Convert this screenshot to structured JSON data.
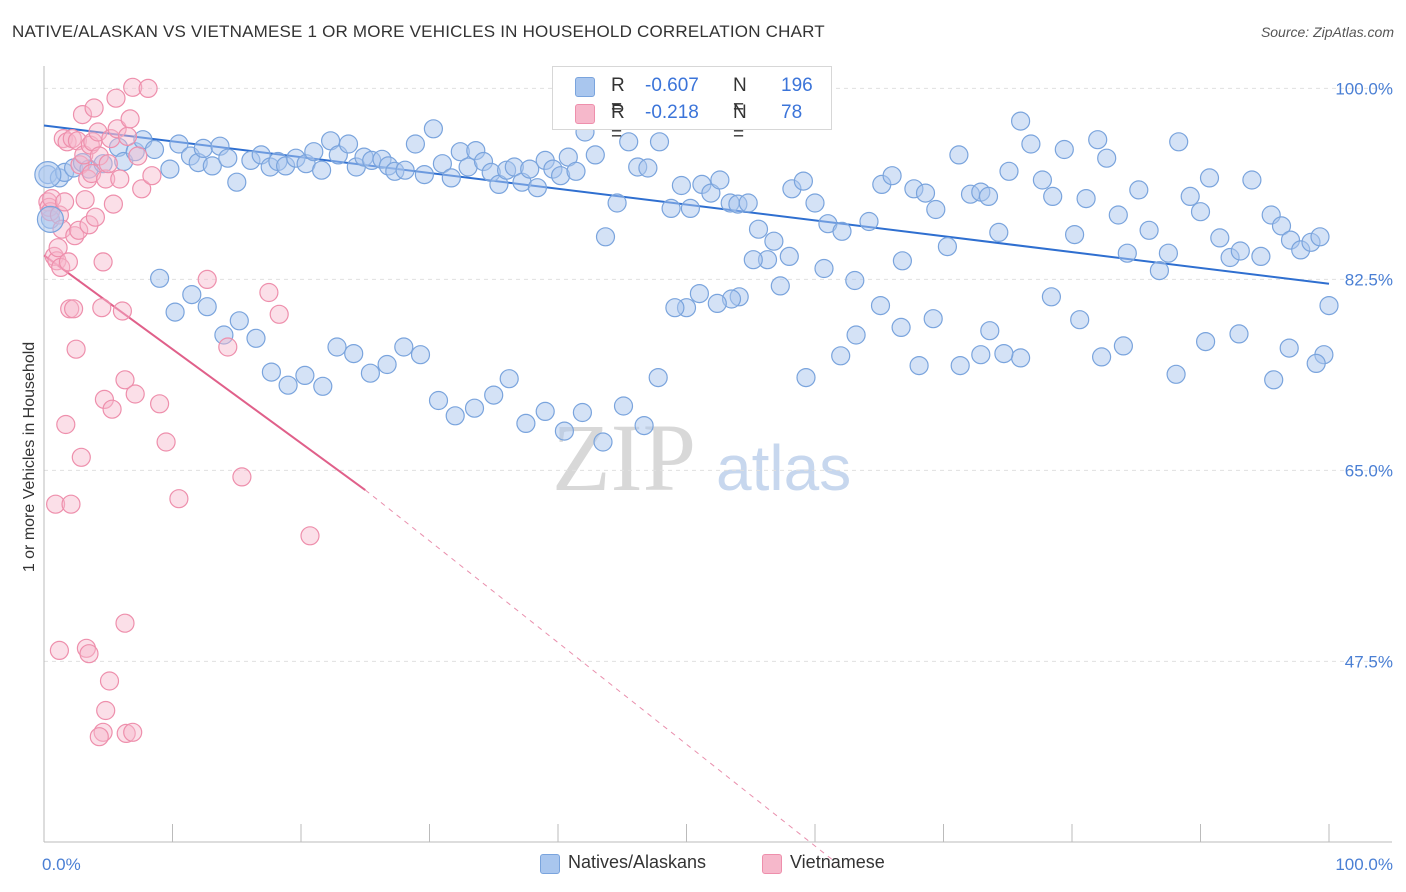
{
  "title": "NATIVE/ALASKAN VS VIETNAMESE 1 OR MORE VEHICLES IN HOUSEHOLD CORRELATION CHART",
  "source": "Source: ZipAtlas.com",
  "watermark": {
    "zip": "ZIP",
    "atlas": "atlas"
  },
  "legend": {
    "rows": [
      {
        "r_label": "R =",
        "r_value": "-0.607",
        "n_label": "N =",
        "n_value": "196"
      },
      {
        "r_label": "R =",
        "r_value": "-0.218",
        "n_label": "N =",
        "n_value": "78"
      }
    ]
  },
  "colors": {
    "native_fill": "#a9c6ee",
    "native_stroke": "#7aa4dd",
    "native_line": "#2f6fd0",
    "viet_fill": "#f6b8cb",
    "viet_stroke": "#ee8fac",
    "viet_line": "#e0608a",
    "axis_text": "#4a7fd4",
    "grid": "#e0e0e0"
  },
  "chart_data": {
    "type": "scatter",
    "title": "NATIVE/ALASKAN VS VIETNAMESE 1 OR MORE VEHICLES IN HOUSEHOLD CORRELATION CHART",
    "xlabel": "",
    "ylabel": "1 or more Vehicles in Household",
    "xlim": [
      0,
      100
    ],
    "ylim": [
      29,
      101.5
    ],
    "x_tick_labels": [
      "0.0%",
      "100.0%"
    ],
    "y_ticks": [
      47.5,
      65.0,
      82.5,
      100.0
    ],
    "y_tick_labels": [
      "47.5%",
      "65.0%",
      "82.5%",
      "100.0%"
    ],
    "grid": "horizontal dashed",
    "legend_placement": "bottom-center",
    "series": [
      {
        "name": "Natives/Alaskans",
        "n": 196,
        "r": -0.607,
        "trend": {
          "x": [
            0,
            100
          ],
          "y": [
            96.6,
            82.1
          ]
        },
        "points": [
          [
            0.3,
            92.1
          ],
          [
            0.5,
            88.0
          ],
          [
            1.2,
            91.8
          ],
          [
            1.6,
            92.3
          ],
          [
            2.3,
            92.7
          ],
          [
            3.0,
            93.2
          ],
          [
            3.5,
            92.6
          ],
          [
            4.6,
            93.1
          ],
          [
            5.8,
            94.6
          ],
          [
            6.2,
            93.3
          ],
          [
            7.1,
            94.2
          ],
          [
            7.7,
            95.3
          ],
          [
            8.6,
            94.4
          ],
          [
            9.8,
            92.6
          ],
          [
            10.5,
            94.9
          ],
          [
            11.4,
            93.8
          ],
          [
            12.0,
            93.2
          ],
          [
            12.4,
            94.5
          ],
          [
            13.1,
            92.9
          ],
          [
            13.7,
            94.7
          ],
          [
            14.3,
            93.6
          ],
          [
            15.0,
            91.4
          ],
          [
            16.1,
            93.4
          ],
          [
            16.9,
            93.9
          ],
          [
            17.6,
            92.8
          ],
          [
            18.2,
            93.3
          ],
          [
            18.8,
            92.9
          ],
          [
            19.6,
            93.6
          ],
          [
            20.4,
            93.1
          ],
          [
            21.0,
            94.2
          ],
          [
            21.6,
            92.5
          ],
          [
            22.3,
            95.2
          ],
          [
            22.9,
            93.9
          ],
          [
            23.7,
            94.9
          ],
          [
            24.3,
            92.8
          ],
          [
            24.9,
            93.7
          ],
          [
            25.5,
            93.4
          ],
          [
            26.3,
            93.5
          ],
          [
            26.8,
            92.9
          ],
          [
            27.3,
            92.4
          ],
          [
            28.1,
            92.5
          ],
          [
            28.9,
            94.9
          ],
          [
            29.6,
            92.1
          ],
          [
            30.3,
            96.3
          ],
          [
            31.0,
            93.1
          ],
          [
            31.7,
            91.8
          ],
          [
            32.4,
            94.2
          ],
          [
            33.0,
            92.8
          ],
          [
            33.6,
            94.3
          ],
          [
            34.2,
            93.3
          ],
          [
            34.8,
            92.3
          ],
          [
            35.4,
            91.2
          ],
          [
            36.0,
            92.5
          ],
          [
            36.6,
            92.8
          ],
          [
            37.2,
            91.4
          ],
          [
            37.8,
            92.6
          ],
          [
            38.4,
            90.9
          ],
          [
            39.0,
            93.4
          ],
          [
            39.6,
            92.6
          ],
          [
            40.2,
            92.0
          ],
          [
            40.8,
            93.7
          ],
          [
            41.4,
            92.4
          ],
          [
            42.1,
            96.0
          ],
          [
            42.9,
            93.9
          ],
          [
            43.7,
            86.4
          ],
          [
            44.6,
            89.5
          ],
          [
            45.5,
            95.1
          ],
          [
            46.2,
            92.8
          ],
          [
            47.0,
            92.7
          ],
          [
            47.9,
            95.1
          ],
          [
            48.8,
            89.0
          ],
          [
            49.6,
            91.1
          ],
          [
            50.3,
            89.0
          ],
          [
            51.2,
            91.2
          ],
          [
            51.9,
            90.4
          ],
          [
            52.6,
            91.6
          ],
          [
            53.4,
            89.5
          ],
          [
            54.0,
            89.4
          ],
          [
            54.8,
            89.5
          ],
          [
            55.6,
            87.1
          ],
          [
            56.3,
            84.3
          ],
          [
            57.3,
            81.9
          ],
          [
            58.2,
            90.8
          ],
          [
            59.1,
            91.5
          ],
          [
            60.0,
            89.5
          ],
          [
            61.0,
            87.6
          ],
          [
            62.1,
            86.9
          ],
          [
            63.1,
            82.4
          ],
          [
            64.2,
            87.8
          ],
          [
            65.2,
            91.2
          ],
          [
            66.0,
            92.0
          ],
          [
            66.8,
            84.2
          ],
          [
            67.7,
            90.8
          ],
          [
            68.6,
            90.4
          ],
          [
            69.4,
            88.9
          ],
          [
            70.3,
            85.5
          ],
          [
            71.2,
            93.9
          ],
          [
            72.1,
            90.3
          ],
          [
            72.9,
            90.5
          ],
          [
            73.5,
            90.1
          ],
          [
            74.3,
            86.8
          ],
          [
            75.1,
            92.4
          ],
          [
            76.0,
            97.0
          ],
          [
            76.8,
            94.9
          ],
          [
            77.7,
            91.6
          ],
          [
            78.5,
            90.1
          ],
          [
            79.4,
            94.4
          ],
          [
            80.2,
            86.6
          ],
          [
            81.1,
            89.9
          ],
          [
            82.0,
            95.3
          ],
          [
            82.7,
            93.6
          ],
          [
            83.6,
            88.4
          ],
          [
            84.3,
            84.9
          ],
          [
            85.2,
            90.7
          ],
          [
            86.0,
            87.0
          ],
          [
            86.8,
            83.3
          ],
          [
            87.5,
            84.9
          ],
          [
            88.3,
            95.1
          ],
          [
            89.2,
            90.1
          ],
          [
            90.0,
            88.7
          ],
          [
            90.7,
            91.8
          ],
          [
            91.5,
            86.3
          ],
          [
            92.3,
            84.5
          ],
          [
            93.1,
            85.1
          ],
          [
            94.0,
            91.6
          ],
          [
            94.7,
            84.6
          ],
          [
            95.5,
            88.4
          ],
          [
            96.3,
            87.4
          ],
          [
            97.0,
            86.1
          ],
          [
            97.8,
            85.2
          ],
          [
            98.6,
            85.9
          ],
          [
            99.3,
            86.4
          ],
          [
            100.0,
            80.1
          ],
          [
            99.6,
            75.6
          ],
          [
            99.0,
            74.8
          ],
          [
            96.9,
            76.2
          ],
          [
            95.7,
            73.3
          ],
          [
            93.0,
            77.5
          ],
          [
            90.4,
            76.8
          ],
          [
            88.1,
            73.8
          ],
          [
            84.0,
            76.4
          ],
          [
            82.3,
            75.4
          ],
          [
            80.6,
            78.8
          ],
          [
            78.4,
            80.9
          ],
          [
            76.0,
            75.3
          ],
          [
            74.7,
            75.7
          ],
          [
            73.6,
            77.8
          ],
          [
            72.9,
            75.6
          ],
          [
            71.3,
            74.6
          ],
          [
            69.2,
            78.9
          ],
          [
            68.1,
            74.6
          ],
          [
            66.7,
            78.1
          ],
          [
            65.1,
            80.1
          ],
          [
            63.2,
            77.4
          ],
          [
            62.0,
            75.5
          ],
          [
            60.7,
            83.5
          ],
          [
            59.3,
            73.5
          ],
          [
            58.0,
            84.6
          ],
          [
            56.8,
            86.0
          ],
          [
            55.2,
            84.3
          ],
          [
            54.1,
            80.9
          ],
          [
            53.5,
            80.7
          ],
          [
            52.4,
            80.3
          ],
          [
            51.0,
            81.2
          ],
          [
            50.0,
            79.9
          ],
          [
            49.1,
            79.9
          ],
          [
            47.8,
            73.5
          ],
          [
            46.7,
            69.1
          ],
          [
            45.1,
            70.9
          ],
          [
            43.5,
            67.6
          ],
          [
            41.9,
            70.3
          ],
          [
            40.5,
            68.6
          ],
          [
            39.0,
            70.4
          ],
          [
            37.5,
            69.3
          ],
          [
            36.2,
            73.4
          ],
          [
            35.0,
            71.9
          ],
          [
            33.5,
            70.7
          ],
          [
            32.0,
            70.0
          ],
          [
            30.7,
            71.4
          ],
          [
            29.3,
            75.6
          ],
          [
            28.0,
            76.3
          ],
          [
            26.7,
            74.7
          ],
          [
            25.4,
            73.9
          ],
          [
            24.1,
            75.7
          ],
          [
            22.8,
            76.3
          ],
          [
            21.7,
            72.7
          ],
          [
            20.3,
            73.7
          ],
          [
            19.0,
            72.8
          ],
          [
            17.7,
            74.0
          ],
          [
            16.5,
            77.1
          ],
          [
            15.2,
            78.7
          ],
          [
            14.0,
            77.4
          ],
          [
            12.7,
            80.0
          ],
          [
            11.5,
            81.1
          ],
          [
            10.2,
            79.5
          ],
          [
            9.0,
            82.6
          ]
        ]
      },
      {
        "name": "Vietnamese",
        "n": 78,
        "r": -0.218,
        "trend": {
          "x": [
            0,
            25
          ],
          "y": [
            84.7,
            63.2
          ]
        },
        "trend_extension": {
          "x": [
            25,
            61.7
          ],
          "y": [
            63.2,
            29.0
          ]
        },
        "points": [
          [
            0.3,
            89.6
          ],
          [
            0.4,
            89.1
          ],
          [
            0.5,
            88.7
          ],
          [
            0.6,
            89.9
          ],
          [
            0.8,
            84.6
          ],
          [
            1.0,
            84.2
          ],
          [
            1.1,
            85.4
          ],
          [
            1.2,
            88.4
          ],
          [
            1.3,
            83.6
          ],
          [
            1.4,
            87.1
          ],
          [
            1.5,
            95.4
          ],
          [
            1.6,
            89.6
          ],
          [
            1.8,
            95.1
          ],
          [
            1.9,
            84.1
          ],
          [
            2.0,
            79.8
          ],
          [
            2.2,
            95.4
          ],
          [
            2.3,
            79.8
          ],
          [
            2.4,
            86.5
          ],
          [
            2.5,
            76.1
          ],
          [
            2.6,
            95.2
          ],
          [
            2.7,
            87.0
          ],
          [
            2.8,
            93.0
          ],
          [
            3.0,
            97.6
          ],
          [
            3.1,
            93.9
          ],
          [
            3.2,
            89.8
          ],
          [
            3.4,
            91.7
          ],
          [
            3.5,
            87.5
          ],
          [
            3.6,
            94.8
          ],
          [
            3.7,
            92.2
          ],
          [
            3.8,
            95.1
          ],
          [
            3.9,
            98.2
          ],
          [
            4.0,
            88.2
          ],
          [
            4.2,
            96.0
          ],
          [
            4.3,
            93.8
          ],
          [
            4.5,
            79.9
          ],
          [
            4.6,
            84.1
          ],
          [
            4.7,
            71.5
          ],
          [
            4.8,
            91.7
          ],
          [
            5.0,
            93.1
          ],
          [
            5.2,
            95.4
          ],
          [
            5.3,
            70.6
          ],
          [
            5.4,
            89.4
          ],
          [
            5.6,
            99.1
          ],
          [
            5.7,
            96.3
          ],
          [
            5.9,
            91.7
          ],
          [
            6.1,
            79.6
          ],
          [
            6.3,
            73.3
          ],
          [
            6.5,
            95.6
          ],
          [
            6.7,
            97.2
          ],
          [
            6.9,
            100.1
          ],
          [
            7.1,
            72.0
          ],
          [
            7.3,
            93.8
          ],
          [
            7.6,
            90.8
          ],
          [
            8.1,
            100.0
          ],
          [
            8.4,
            92.0
          ],
          [
            9.0,
            71.1
          ],
          [
            9.5,
            67.6
          ],
          [
            10.5,
            62.4
          ],
          [
            12.7,
            82.5
          ],
          [
            14.3,
            76.3
          ],
          [
            15.4,
            64.4
          ],
          [
            17.5,
            81.3
          ],
          [
            18.3,
            79.3
          ],
          [
            20.7,
            59.0
          ],
          [
            0.9,
            61.9
          ],
          [
            1.7,
            69.2
          ],
          [
            2.1,
            61.9
          ],
          [
            3.3,
            48.7
          ],
          [
            3.5,
            48.2
          ],
          [
            4.8,
            43.0
          ],
          [
            5.1,
            45.7
          ],
          [
            6.3,
            51.0
          ],
          [
            6.4,
            40.9
          ],
          [
            6.9,
            41.0
          ],
          [
            4.6,
            41.0
          ],
          [
            4.3,
            40.6
          ],
          [
            1.2,
            48.5
          ],
          [
            2.9,
            66.2
          ]
        ]
      }
    ]
  },
  "bottom_legend": [
    {
      "label": "Natives/Alaskans"
    },
    {
      "label": "Vietnamese"
    }
  ]
}
